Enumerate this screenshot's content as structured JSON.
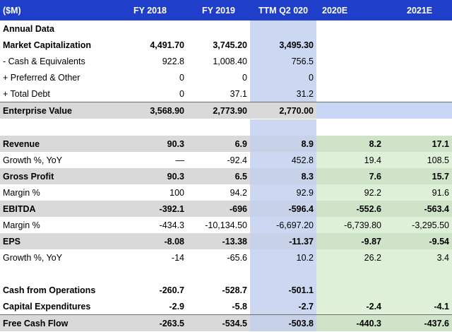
{
  "header": [
    "($M)",
    "FY 2018",
    "FY 2019",
    "TTM Q2 020",
    "2020E",
    "2021E"
  ],
  "rows": [
    {
      "label": "Annual Data",
      "bold": true,
      "cells": [
        "",
        "",
        "",
        "",
        ""
      ]
    },
    {
      "label": "Market Capitalization",
      "bold": true,
      "cells": [
        "4,491.70",
        "3,745.20",
        "3,495.30",
        "",
        ""
      ]
    },
    {
      "label": "- Cash & Equivalents",
      "cells": [
        "922.8",
        "1,008.40",
        "756.5",
        "",
        ""
      ]
    },
    {
      "label": "+ Preferred & Other",
      "cells": [
        "0",
        "0",
        "0",
        "",
        ""
      ]
    },
    {
      "label": "+ Total Debt",
      "cells": [
        "0",
        "37.1",
        "31.2",
        "",
        ""
      ]
    },
    {
      "label": "Enterprise Value",
      "bold": true,
      "cells": [
        "3,568.90",
        "2,773.90",
        "2,770.00",
        "",
        ""
      ]
    },
    {
      "label": "Revenue",
      "bold": true,
      "cells": [
        "90.3",
        "6.9",
        "8.9",
        "8.2",
        "17.1"
      ]
    },
    {
      "label": "Growth %, YoY",
      "cells": [
        "—",
        "-92.4",
        "452.8",
        "19.4",
        "108.5"
      ]
    },
    {
      "label": "Gross Profit",
      "bold": true,
      "cells": [
        "90.3",
        "6.5",
        "8.3",
        "7.6",
        "15.7"
      ]
    },
    {
      "label": "Margin %",
      "cells": [
        "100",
        "94.2",
        "92.9",
        "92.2",
        "91.6"
      ]
    },
    {
      "label": "EBITDA",
      "bold": true,
      "cells": [
        "-392.1",
        "-696",
        "-596.4",
        "-552.6",
        "-563.4"
      ]
    },
    {
      "label": "Margin %",
      "cells": [
        "-434.3",
        "-10,134.50",
        "-6,697.20",
        "-6,739.80",
        "-3,295.50"
      ]
    },
    {
      "label": "EPS",
      "bold": true,
      "cells": [
        "-8.08",
        "-13.38",
        "-11.37",
        "-9.87",
        "-9.54"
      ]
    },
    {
      "label": "Growth %, YoY",
      "cells": [
        "-14",
        "-65.6",
        "10.2",
        "26.2",
        "3.4"
      ]
    },
    {
      "label": "Cash from Operations",
      "bold": true,
      "cells": [
        "-260.7",
        "-528.7",
        "-501.1",
        "",
        ""
      ]
    },
    {
      "label": "Capital Expenditures",
      "bold": true,
      "cells": [
        "-2.9",
        "-5.8",
        "-2.7",
        "-2.4",
        "-4.1"
      ]
    },
    {
      "label": "Free Cash Flow",
      "bold": true,
      "cells": [
        "-263.5",
        "-534.5",
        "-503.8",
        "-440.3",
        "-437.6"
      ]
    }
  ],
  "colors": {
    "header_bg": "#1f3ec9",
    "ttm_column": "#ccd8f2",
    "estimate_columns": "#dff0d8",
    "shaded_row": "#d9d9d9"
  }
}
